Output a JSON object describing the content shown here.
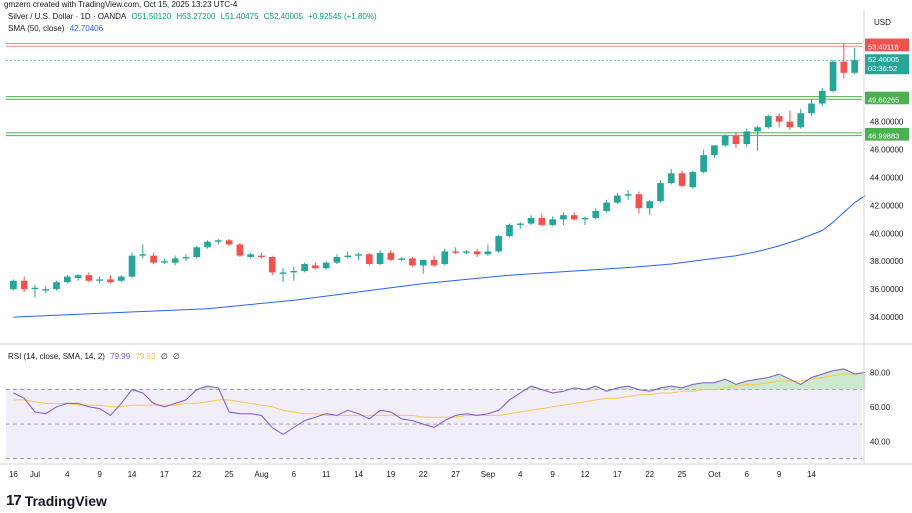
{
  "header": {
    "creator": "gmzern created with TradingView.com, Oct 15, 2025 13:23 UTC-4",
    "symbol": "Silver / U.S. Dollar · 1D · OANDA",
    "open": "O51.50120",
    "high": "H53.27200",
    "low": "L51.40475",
    "close": "C52.40005",
    "change": "+0.92545 (+1.80%)",
    "sma_label": "SMA (50, close)",
    "sma_value": "42.70406"
  },
  "rsi_legend": {
    "label": "RSI (14, close, SMA, 14, 2)",
    "rsi_value": "79.99",
    "ma_value": "79.93",
    "extra1": "∅",
    "extra2": "∅"
  },
  "currency": "USD",
  "branding": {
    "logo_mark": "17",
    "logo_text": "TradingView"
  },
  "colors": {
    "up": "#26a69a",
    "down": "#ef5350",
    "sma": "#2962ff",
    "rsi": "#7e57c2",
    "rsi_ma": "#f7c948",
    "resistance": "#f28b8b",
    "support": "#4caf50"
  },
  "chart_data": [
    {
      "type": "candlestick",
      "title": "Silver / U.S. Dollar · 1D · OANDA",
      "ylim": [
        32.5,
        56.0
      ],
      "y_ticks": [
        34,
        36,
        38,
        40,
        42,
        44,
        46,
        48
      ],
      "y_tick_labels": [
        "34.00000",
        "36.00000",
        "38.00000",
        "40.00000",
        "42.00000",
        "44.00000",
        "46.00000",
        "48.00000"
      ],
      "x_tick_labels": [
        "16",
        "Jul",
        "4",
        "9",
        "14",
        "17",
        "22",
        "25",
        "Aug",
        "6",
        "11",
        "14",
        "19",
        "22",
        "27",
        "Sep",
        "4",
        "9",
        "12",
        "17",
        "22",
        "25",
        "Oct",
        "6",
        "9",
        "14"
      ],
      "x_tick_index": [
        0,
        2,
        5,
        8,
        11,
        14,
        17,
        20,
        23,
        26,
        29,
        32,
        35,
        38,
        41,
        44,
        47,
        50,
        53,
        56,
        59,
        62,
        65,
        68,
        71,
        74
      ],
      "candles": [
        {
          "o": 36.0,
          "h": 36.7,
          "l": 35.9,
          "c": 36.6
        },
        {
          "o": 36.6,
          "h": 36.9,
          "l": 35.8,
          "c": 36.0
        },
        {
          "o": 36.0,
          "h": 36.3,
          "l": 35.4,
          "c": 36.1
        },
        {
          "o": 35.9,
          "h": 36.2,
          "l": 35.7,
          "c": 36.0
        },
        {
          "o": 36.0,
          "h": 36.6,
          "l": 35.9,
          "c": 36.5
        },
        {
          "o": 36.5,
          "h": 37.0,
          "l": 36.4,
          "c": 36.9
        },
        {
          "o": 36.8,
          "h": 37.1,
          "l": 36.6,
          "c": 37.0
        },
        {
          "o": 37.0,
          "h": 37.2,
          "l": 36.5,
          "c": 36.6
        },
        {
          "o": 36.6,
          "h": 36.9,
          "l": 36.4,
          "c": 36.7
        },
        {
          "o": 36.7,
          "h": 37.0,
          "l": 36.4,
          "c": 36.5
        },
        {
          "o": 36.6,
          "h": 37.0,
          "l": 36.5,
          "c": 36.9
        },
        {
          "o": 36.9,
          "h": 38.6,
          "l": 36.8,
          "c": 38.4
        },
        {
          "o": 38.4,
          "h": 39.2,
          "l": 38.2,
          "c": 38.5
        },
        {
          "o": 38.4,
          "h": 38.6,
          "l": 37.8,
          "c": 37.9
        },
        {
          "o": 37.9,
          "h": 38.2,
          "l": 37.8,
          "c": 38.0
        },
        {
          "o": 37.9,
          "h": 38.4,
          "l": 37.7,
          "c": 38.2
        },
        {
          "o": 38.2,
          "h": 38.5,
          "l": 38.0,
          "c": 38.3
        },
        {
          "o": 38.3,
          "h": 39.1,
          "l": 38.2,
          "c": 39.0
        },
        {
          "o": 39.0,
          "h": 39.5,
          "l": 38.9,
          "c": 39.4
        },
        {
          "o": 39.4,
          "h": 39.6,
          "l": 39.2,
          "c": 39.5
        },
        {
          "o": 39.5,
          "h": 39.6,
          "l": 39.1,
          "c": 39.2
        },
        {
          "o": 39.2,
          "h": 39.3,
          "l": 38.3,
          "c": 38.4
        },
        {
          "o": 38.3,
          "h": 38.6,
          "l": 38.2,
          "c": 38.5
        },
        {
          "o": 38.4,
          "h": 38.6,
          "l": 38.2,
          "c": 38.3
        },
        {
          "o": 38.3,
          "h": 38.4,
          "l": 37.0,
          "c": 37.2
        },
        {
          "o": 37.1,
          "h": 37.5,
          "l": 36.5,
          "c": 37.2
        },
        {
          "o": 37.2,
          "h": 37.6,
          "l": 36.6,
          "c": 37.3
        },
        {
          "o": 37.3,
          "h": 37.9,
          "l": 37.2,
          "c": 37.8
        },
        {
          "o": 37.7,
          "h": 37.9,
          "l": 37.4,
          "c": 37.5
        },
        {
          "o": 37.5,
          "h": 38.0,
          "l": 37.4,
          "c": 37.9
        },
        {
          "o": 37.9,
          "h": 38.5,
          "l": 37.8,
          "c": 38.3
        },
        {
          "o": 38.3,
          "h": 38.7,
          "l": 38.2,
          "c": 38.4
        },
        {
          "o": 38.4,
          "h": 38.6,
          "l": 38.1,
          "c": 38.5
        },
        {
          "o": 38.5,
          "h": 38.6,
          "l": 37.7,
          "c": 37.8
        },
        {
          "o": 37.8,
          "h": 38.8,
          "l": 37.7,
          "c": 38.6
        },
        {
          "o": 38.6,
          "h": 38.8,
          "l": 38.0,
          "c": 38.1
        },
        {
          "o": 38.1,
          "h": 38.3,
          "l": 38.0,
          "c": 38.2
        },
        {
          "o": 38.2,
          "h": 38.3,
          "l": 37.6,
          "c": 37.7
        },
        {
          "o": 37.7,
          "h": 38.1,
          "l": 37.1,
          "c": 38.1
        },
        {
          "o": 38.1,
          "h": 38.4,
          "l": 37.6,
          "c": 37.7
        },
        {
          "o": 37.8,
          "h": 38.9,
          "l": 37.7,
          "c": 38.7
        },
        {
          "o": 38.7,
          "h": 39.0,
          "l": 38.5,
          "c": 38.6
        },
        {
          "o": 38.6,
          "h": 38.8,
          "l": 38.5,
          "c": 38.7
        },
        {
          "o": 38.7,
          "h": 38.9,
          "l": 38.3,
          "c": 38.5
        },
        {
          "o": 38.5,
          "h": 39.2,
          "l": 38.4,
          "c": 38.7
        },
        {
          "o": 38.7,
          "h": 39.9,
          "l": 38.6,
          "c": 39.8
        },
        {
          "o": 39.8,
          "h": 40.7,
          "l": 39.7,
          "c": 40.6
        },
        {
          "o": 40.6,
          "h": 40.8,
          "l": 40.3,
          "c": 40.7
        },
        {
          "o": 40.7,
          "h": 41.3,
          "l": 40.6,
          "c": 41.1
        },
        {
          "o": 41.1,
          "h": 41.4,
          "l": 40.5,
          "c": 40.6
        },
        {
          "o": 40.6,
          "h": 41.2,
          "l": 40.5,
          "c": 41.0
        },
        {
          "o": 41.0,
          "h": 41.5,
          "l": 40.6,
          "c": 41.3
        },
        {
          "o": 41.3,
          "h": 41.5,
          "l": 40.9,
          "c": 41.0
        },
        {
          "o": 41.0,
          "h": 41.2,
          "l": 40.6,
          "c": 41.1
        },
        {
          "o": 41.1,
          "h": 41.8,
          "l": 41.0,
          "c": 41.6
        },
        {
          "o": 41.6,
          "h": 42.4,
          "l": 41.5,
          "c": 42.2
        },
        {
          "o": 42.2,
          "h": 42.9,
          "l": 42.1,
          "c": 42.7
        },
        {
          "o": 42.7,
          "h": 43.1,
          "l": 42.4,
          "c": 42.8
        },
        {
          "o": 42.8,
          "h": 43.0,
          "l": 41.4,
          "c": 41.8
        },
        {
          "o": 41.8,
          "h": 42.4,
          "l": 41.3,
          "c": 42.3
        },
        {
          "o": 42.3,
          "h": 43.8,
          "l": 42.2,
          "c": 43.6
        },
        {
          "o": 43.6,
          "h": 44.6,
          "l": 43.5,
          "c": 44.3
        },
        {
          "o": 44.3,
          "h": 44.5,
          "l": 43.3,
          "c": 43.4
        },
        {
          "o": 43.3,
          "h": 44.5,
          "l": 43.2,
          "c": 44.4
        },
        {
          "o": 44.4,
          "h": 46.0,
          "l": 44.3,
          "c": 45.6
        },
        {
          "o": 45.6,
          "h": 46.3,
          "l": 45.4,
          "c": 46.3
        },
        {
          "o": 46.3,
          "h": 47.1,
          "l": 46.2,
          "c": 47.0
        },
        {
          "o": 47.0,
          "h": 47.2,
          "l": 46.1,
          "c": 46.4
        },
        {
          "o": 46.4,
          "h": 47.5,
          "l": 46.2,
          "c": 47.3
        },
        {
          "o": 47.3,
          "h": 47.7,
          "l": 45.9,
          "c": 47.6
        },
        {
          "o": 47.6,
          "h": 48.5,
          "l": 47.5,
          "c": 48.4
        },
        {
          "o": 48.4,
          "h": 48.6,
          "l": 47.6,
          "c": 48.0
        },
        {
          "o": 48.0,
          "h": 48.8,
          "l": 47.4,
          "c": 47.6
        },
        {
          "o": 47.6,
          "h": 48.9,
          "l": 47.5,
          "c": 48.6
        },
        {
          "o": 48.6,
          "h": 49.6,
          "l": 48.4,
          "c": 49.3
        },
        {
          "o": 49.3,
          "h": 50.4,
          "l": 49.1,
          "c": 50.2
        },
        {
          "o": 50.2,
          "h": 52.4,
          "l": 50.1,
          "c": 52.3
        },
        {
          "o": 52.3,
          "h": 53.6,
          "l": 51.1,
          "c": 51.5
        },
        {
          "o": 51.5,
          "h": 53.3,
          "l": 51.4,
          "c": 52.4
        }
      ],
      "sma_50": [
        34.0,
        34.2,
        34.4,
        34.6,
        34.9,
        35.2,
        35.6,
        36.0,
        36.4,
        36.7,
        37.0,
        37.2,
        37.4,
        37.6,
        37.8,
        38.1,
        38.4,
        38.7,
        39.1,
        39.6,
        40.2,
        40.8,
        41.5,
        42.2,
        42.7
      ],
      "sma_50_index": [
        0,
        6,
        12,
        18,
        22,
        26,
        30,
        34,
        38,
        42,
        46,
        50,
        54,
        58,
        61,
        64,
        67,
        69,
        71,
        73,
        75,
        76,
        77,
        78,
        79
      ],
      "levels": [
        {
          "value": 53.59852,
          "label": "53.59852",
          "kind": "resistance"
        },
        {
          "value": 53.40118,
          "label": "53.40118",
          "kind": "resistance"
        },
        {
          "value": 49.79164,
          "label": "49.79164",
          "kind": "support"
        },
        {
          "value": 49.60265,
          "label": "49.60265",
          "kind": "support"
        },
        {
          "value": 47.19455,
          "label": "47.19455",
          "kind": "support"
        },
        {
          "value": 46.99883,
          "label": "46.99883",
          "kind": "support"
        }
      ],
      "last_price": {
        "value": 52.40005,
        "label": "52.40005",
        "countdown": "03:36:52"
      }
    },
    {
      "type": "line",
      "title": "RSI (14, close, SMA, 14, 2)",
      "ylim": [
        28,
        86
      ],
      "y_ticks": [
        40,
        60,
        80
      ],
      "y_tick_labels": [
        "40.00",
        "60.00",
        "80.00"
      ],
      "band": [
        30,
        70
      ],
      "series": [
        {
          "name": "RSI",
          "values": [
            68,
            65,
            57,
            56,
            60,
            62,
            62,
            60,
            59,
            55,
            62,
            70,
            68,
            62,
            60,
            62,
            64,
            70,
            72,
            71,
            57,
            56,
            56,
            55,
            48,
            44,
            48,
            52,
            54,
            56,
            55,
            58,
            56,
            53,
            58,
            57,
            53,
            52,
            50,
            48,
            52,
            55,
            56,
            55,
            56,
            58,
            64,
            68,
            72,
            70,
            68,
            69,
            71,
            70,
            72,
            69,
            71,
            72,
            70,
            69,
            71,
            72,
            71,
            73,
            74,
            74,
            76,
            73,
            75,
            76,
            77,
            79,
            76,
            73,
            77,
            79,
            81,
            82,
            79,
            80
          ]
        },
        {
          "name": "MA",
          "values": [
            64,
            64,
            63,
            62,
            62,
            62,
            61,
            61,
            61,
            60,
            60,
            61,
            61,
            61,
            61,
            61,
            62,
            62,
            63,
            64,
            64,
            63,
            62,
            61,
            60,
            58,
            57,
            56,
            56,
            55,
            55,
            55,
            55,
            55,
            55,
            55,
            55,
            55,
            54,
            54,
            54,
            54,
            55,
            55,
            55,
            55,
            56,
            57,
            58,
            59,
            60,
            61,
            62,
            63,
            64,
            65,
            65,
            66,
            67,
            67,
            68,
            68,
            69,
            69,
            70,
            70,
            71,
            72,
            73,
            73,
            74,
            75,
            75,
            75,
            76,
            77,
            78,
            79,
            79,
            80
          ]
        }
      ]
    }
  ]
}
